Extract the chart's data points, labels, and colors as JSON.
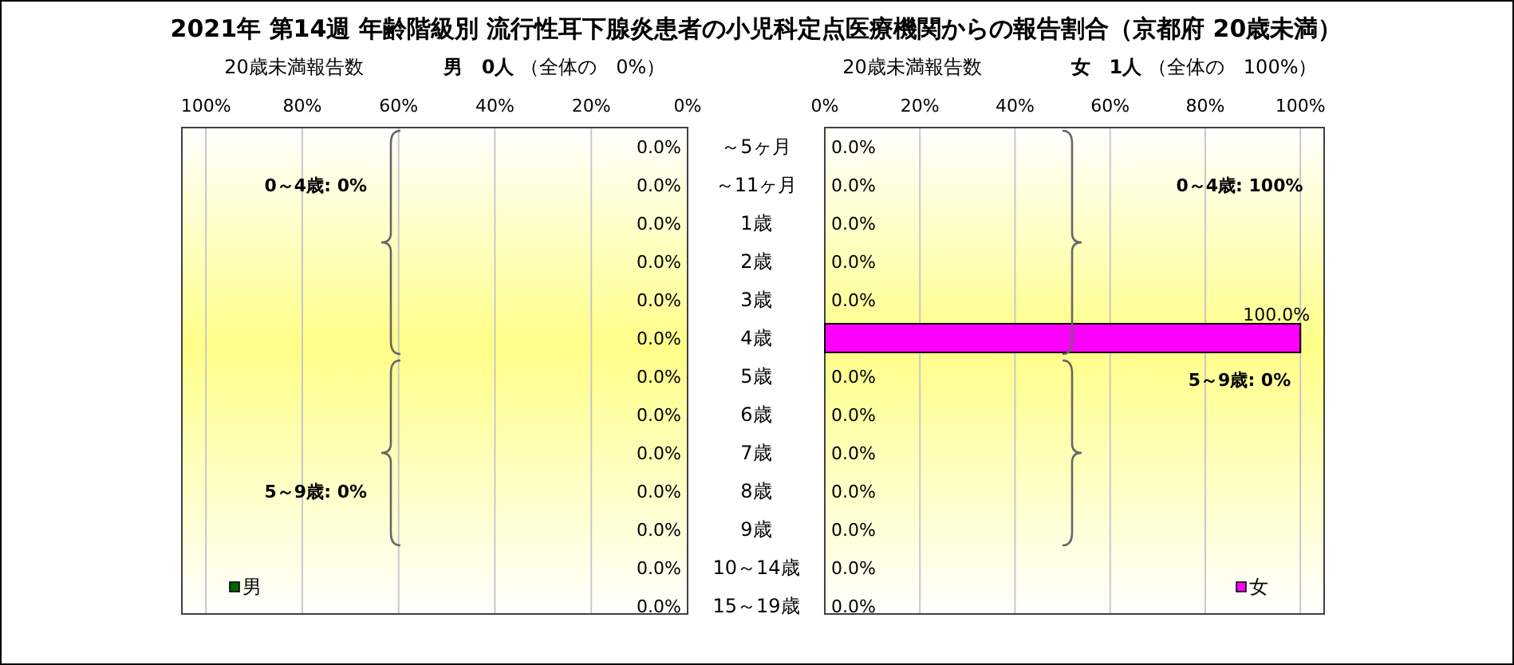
{
  "chart_data": [
    {
      "type": "bar",
      "orientation": "horizontal",
      "title": "2021年 第14週 年齢階級別 流行性耳下腺炎患者の小児科定点医療機関からの報告割合（京都府 20歳未満）",
      "subtitle": "**男　0人** （全体の　0%）",
      "xlabel": "20歳未満報告数",
      "categories": [
        "～5ヶ月",
        "～11ヶ月",
        "1歳",
        "2歳",
        "3歳",
        "4歳",
        "5歳",
        "6歳",
        "7歳",
        "8歳",
        "9歳",
        "10～14歳",
        "15～19歳"
      ],
      "series": [
        {
          "name": "男",
          "color": "#006600",
          "values": [
            0,
            0,
            0,
            0,
            0,
            0,
            0,
            0,
            0,
            0,
            0,
            0,
            0
          ],
          "value_labels": [
            "0.0%",
            "0.0%",
            "0.0%",
            "0.0%",
            "0.0%",
            "0.0%",
            "0.0%",
            "0.0%",
            "0.0%",
            "0.0%",
            "0.0%",
            "0.0%",
            "0.0%"
          ]
        }
      ],
      "xlim": [
        105,
        0
      ],
      "xticks": [
        {
          "value": 100,
          "label": "100%"
        },
        {
          "value": 80,
          "label": "80%"
        },
        {
          "value": 60,
          "label": "60%"
        },
        {
          "value": 40,
          "label": "40%"
        },
        {
          "value": 20,
          "label": "20%"
        },
        {
          "value": 0,
          "label": "0%"
        }
      ],
      "grid": "x",
      "legend": "bottom left",
      "annotations": [
        "0～4歳: 0%",
        "5～9歳: 0%"
      ]
    },
    {
      "type": "bar",
      "orientation": "horizontal",
      "subtitle": "**女　1人** （全体の　100%）",
      "xlabel": "20歳未満報告数",
      "categories": [
        null,
        null,
        null,
        null,
        null,
        null,
        null,
        null,
        null,
        null,
        null,
        null,
        null
      ],
      "series": [
        {
          "name": "女",
          "color": "#ff00ff",
          "values": [
            0,
            0,
            0,
            0,
            0,
            100,
            0,
            0,
            0,
            0,
            0,
            0,
            0
          ],
          "value_labels": [
            "0.0%",
            "0.0%",
            "0.0%",
            "0.0%",
            "0.0%",
            "100.0%",
            "0.0%",
            "0.0%",
            "0.0%",
            "0.0%",
            "0.0%",
            "0.0%",
            "0.0%"
          ]
        }
      ],
      "xlim": [
        0,
        105
      ],
      "xticks": [
        {
          "value": 0,
          "label": "0%"
        },
        {
          "value": 20,
          "label": "20%"
        },
        {
          "value": 40,
          "label": "40%"
        },
        {
          "value": 60,
          "label": "60%"
        },
        {
          "value": 80,
          "label": "80%"
        },
        {
          "value": 100,
          "label": "100%"
        }
      ],
      "grid": "x",
      "legend": "bottom right",
      "tick_labels": "x",
      "annotations": [
        "0～4歳: 100%",
        "5～9歳: 0%"
      ]
    }
  ]
}
